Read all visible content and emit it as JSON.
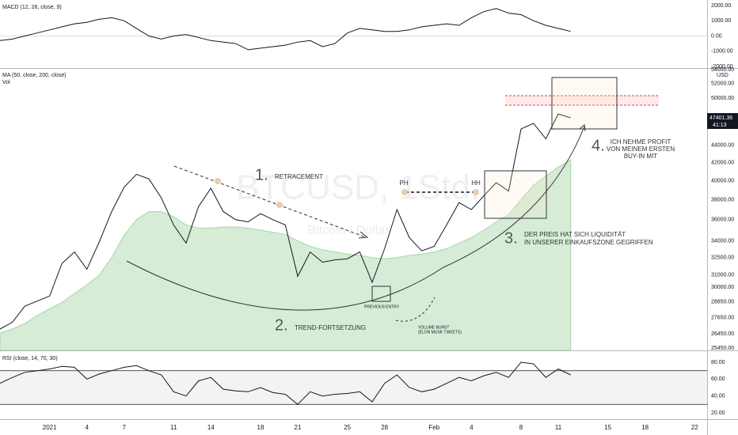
{
  "chart_data": [
    {
      "type": "line",
      "title": "MACD (12, 26, close, 9)",
      "x": [
        "2020-12-28",
        "2020-12-29",
        "2020-12-30",
        "2020-12-31",
        "2021-01-01",
        "2021-01-02",
        "2021-01-03",
        "2021-01-04",
        "2021-01-05",
        "2021-01-06",
        "2021-01-07",
        "2021-01-08",
        "2021-01-09",
        "2021-01-10",
        "2021-01-11",
        "2021-01-12",
        "2021-01-13",
        "2021-01-14",
        "2021-01-15",
        "2021-01-16",
        "2021-01-17",
        "2021-01-18",
        "2021-01-19",
        "2021-01-20",
        "2021-01-21",
        "2021-01-22",
        "2021-01-23",
        "2021-01-24",
        "2021-01-25",
        "2021-01-26",
        "2021-01-27",
        "2021-01-28",
        "2021-01-29",
        "2021-01-30",
        "2021-01-31",
        "2021-02-01",
        "2021-02-02",
        "2021-02-03",
        "2021-02-04",
        "2021-02-05",
        "2021-02-06",
        "2021-02-07",
        "2021-02-08",
        "2021-02-09",
        "2021-02-10",
        "2021-02-11",
        "2021-02-12"
      ],
      "series": [
        {
          "color": "#131722",
          "values": [
            -300,
            -200,
            0,
            200,
            400,
            600,
            800,
            900,
            1100,
            1200,
            1000,
            500,
            0,
            -200,
            0,
            100,
            -100,
            -300,
            -400,
            -500,
            -900,
            -800,
            -700,
            -600,
            -400,
            -300,
            -700,
            -500,
            200,
            500,
            400,
            300,
            300,
            400,
            600,
            700,
            800,
            700,
            1200,
            1600,
            1800,
            1500,
            1400,
            1000,
            700,
            500,
            300
          ]
        }
      ],
      "xlim": [
        "2020-12-28",
        "2021-02-23"
      ],
      "ylim": [
        -2100,
        2360
      ],
      "yticks": [
        {
          "value": 2000,
          "label": "2000.00"
        },
        {
          "value": 1000,
          "label": "1000.00"
        },
        {
          "value": 0,
          "label": "0.00"
        },
        {
          "value": -1000,
          "label": "-1000.00"
        },
        {
          "value": -2000,
          "label": "-2000.00"
        }
      ]
    },
    {
      "type": "line",
      "title": "MA (50, close, 200, close)",
      "subtitle": "Vol",
      "y_unit": "USD",
      "log_scale": true,
      "watermark": "BTCUSD, 1Std.",
      "watermark_subtitle": "Bitcoin / Dollar",
      "countdown": "41:13",
      "x": [
        "2020-12-28",
        "2020-12-29",
        "2020-12-30",
        "2020-12-31",
        "2021-01-01",
        "2021-01-02",
        "2021-01-03",
        "2021-01-04",
        "2021-01-05",
        "2021-01-06",
        "2021-01-07",
        "2021-01-08",
        "2021-01-09",
        "2021-01-10",
        "2021-01-11",
        "2021-01-12",
        "2021-01-13",
        "2021-01-14",
        "2021-01-15",
        "2021-01-16",
        "2021-01-17",
        "2021-01-18",
        "2021-01-19",
        "2021-01-20",
        "2021-01-21",
        "2021-01-22",
        "2021-01-23",
        "2021-01-24",
        "2021-01-25",
        "2021-01-26",
        "2021-01-27",
        "2021-01-28",
        "2021-01-29",
        "2021-01-30",
        "2021-01-31",
        "2021-02-01",
        "2021-02-02",
        "2021-02-03",
        "2021-02-04",
        "2021-02-05",
        "2021-02-06",
        "2021-02-07",
        "2021-02-08",
        "2021-02-09",
        "2021-02-10",
        "2021-02-11",
        "2021-02-12"
      ],
      "series": [
        {
          "color": "#c8e6c9",
          "style": "area",
          "values": [
            26500,
            26800,
            27200,
            27800,
            28300,
            28800,
            29500,
            30200,
            31000,
            32500,
            34500,
            36000,
            36800,
            36800,
            36300,
            35500,
            35200,
            35200,
            35300,
            35300,
            35200,
            35000,
            34800,
            34600,
            34000,
            33500,
            33200,
            33000,
            32800,
            32700,
            32500,
            32400,
            32500,
            32700,
            32800,
            33000,
            33300,
            33800,
            34300,
            35000,
            35800,
            36500,
            38000,
            39500,
            40500,
            41500,
            42300
          ]
        },
        {
          "color": "#131722",
          "values": [
            26800,
            27300,
            28500,
            28900,
            29300,
            32000,
            33000,
            31500,
            33900,
            36800,
            39300,
            40700,
            40200,
            38200,
            35500,
            33800,
            37300,
            39200,
            36800,
            36000,
            35800,
            36600,
            36000,
            35500,
            30900,
            33000,
            32100,
            32300,
            32400,
            33000,
            30400,
            33300,
            37000,
            34300,
            33100,
            33500,
            35500,
            37700,
            37000,
            38400,
            39800,
            38900,
            46000,
            46700,
            44800,
            47900,
            47401.36
          ]
        }
      ],
      "xlim": [
        "2020-12-28",
        "2021-02-23"
      ],
      "xticks": [
        {
          "value": "2021-01-01",
          "label": "2021"
        },
        {
          "value": "2021-01-04",
          "label": "4"
        },
        {
          "value": "2021-01-07",
          "label": "7"
        },
        {
          "value": "2021-01-11",
          "label": "11"
        },
        {
          "value": "2021-01-14",
          "label": "14"
        },
        {
          "value": "2021-01-18",
          "label": "18"
        },
        {
          "value": "2021-01-21",
          "label": "21"
        },
        {
          "value": "2021-01-25",
          "label": "25"
        },
        {
          "value": "2021-01-28",
          "label": "28"
        },
        {
          "value": "2021-02-01",
          "label": "Feb"
        },
        {
          "value": "2021-02-04",
          "label": "4"
        },
        {
          "value": "2021-02-08",
          "label": "8"
        },
        {
          "value": "2021-02-11",
          "label": "11"
        },
        {
          "value": "2021-02-15",
          "label": "15"
        },
        {
          "value": "2021-02-18",
          "label": "18"
        },
        {
          "value": "2021-02-22",
          "label": "22"
        }
      ],
      "ylim": [
        25300,
        54000
      ],
      "yticks": [
        {
          "value": 54000,
          "label": "54000.00"
        },
        {
          "value": 52000,
          "label": "52000.00"
        },
        {
          "value": 50000,
          "label": "50000.00"
        },
        {
          "value": 44000,
          "label": "44000.00"
        },
        {
          "value": 42000,
          "label": "42000.00"
        },
        {
          "value": 40000,
          "label": "40000.00"
        },
        {
          "value": 38000,
          "label": "38000.00"
        },
        {
          "value": 36000,
          "label": "36000.00"
        },
        {
          "value": 34000,
          "label": "34000.00"
        },
        {
          "value": 32500,
          "label": "32500.00"
        },
        {
          "value": 31000,
          "label": "31000.00"
        },
        {
          "value": 30000,
          "label": "30000.00"
        },
        {
          "value": 28850,
          "label": "28850.00"
        },
        {
          "value": 27650,
          "label": "27650.00"
        },
        {
          "value": 26450,
          "label": "26450.00"
        },
        {
          "value": 25450,
          "label": "25450.00"
        }
      ]
    },
    {
      "type": "line",
      "title": "RSI (close, 14, 70, 30)",
      "x": [
        "2020-12-28",
        "2020-12-29",
        "2020-12-30",
        "2020-12-31",
        "2021-01-01",
        "2021-01-02",
        "2021-01-03",
        "2021-01-04",
        "2021-01-05",
        "2021-01-06",
        "2021-01-07",
        "2021-01-08",
        "2021-01-09",
        "2021-01-10",
        "2021-01-11",
        "2021-01-12",
        "2021-01-13",
        "2021-01-14",
        "2021-01-15",
        "2021-01-16",
        "2021-01-17",
        "2021-01-18",
        "2021-01-19",
        "2021-01-20",
        "2021-01-21",
        "2021-01-22",
        "2021-01-23",
        "2021-01-24",
        "2021-01-25",
        "2021-01-26",
        "2021-01-27",
        "2021-01-28",
        "2021-01-29",
        "2021-01-30",
        "2021-01-31",
        "2021-02-01",
        "2021-02-02",
        "2021-02-03",
        "2021-02-04",
        "2021-02-05",
        "2021-02-06",
        "2021-02-07",
        "2021-02-08",
        "2021-02-09",
        "2021-02-10",
        "2021-02-11",
        "2021-02-12"
      ],
      "series": [
        {
          "color": "#131722",
          "values": [
            55,
            62,
            68,
            70,
            72,
            75,
            74,
            60,
            66,
            70,
            74,
            76,
            70,
            65,
            45,
            40,
            58,
            62,
            48,
            46,
            45,
            50,
            44,
            42,
            30,
            45,
            40,
            42,
            43,
            45,
            33,
            55,
            65,
            50,
            45,
            48,
            55,
            62,
            58,
            64,
            68,
            62,
            80,
            78,
            62,
            72,
            65
          ]
        }
      ],
      "bands": [
        30,
        70
      ],
      "xlim": [
        "2020-12-28",
        "2021-02-23"
      ],
      "ylim": [
        12.5,
        92.2
      ],
      "yticks": [
        {
          "value": 80,
          "label": "80.00"
        },
        {
          "value": 60,
          "label": "60.00"
        },
        {
          "value": 40,
          "label": "40.00"
        },
        {
          "value": 20,
          "label": "20.00"
        }
      ]
    }
  ],
  "annotations": {
    "step1_number": "1.",
    "step1_text": "RETRACEMENT",
    "step2_number": "2.",
    "step2_text": "TREND-FORTSETZUNG",
    "step3_number": "3.",
    "step3_line1": "DER PREIS HAT SICH LIQUIDITÄT",
    "step3_line2": "IN UNSERER EINKAUFSZONE GEGRIFFEN",
    "step4_number": "4.",
    "step4_line1": "ICH NEHME PROFIT",
    "step4_line2": "VON MEINEM ERSTEN",
    "step4_line3": "BUY-IN MIT",
    "ph": "PH",
    "hh": "HH",
    "previous_entry": "PREVIOUS ENTRY",
    "volume_line1": "VOLUME BURST",
    "volume_line2": "(ELON MUSK TWEETS)"
  }
}
